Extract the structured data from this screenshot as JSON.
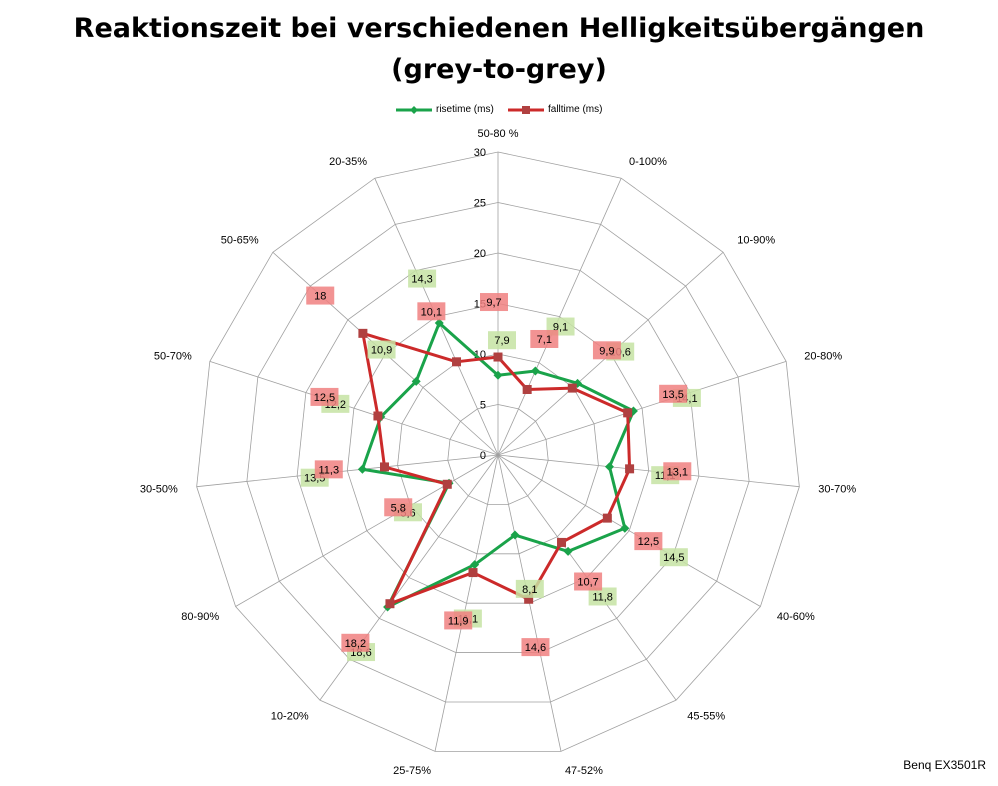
{
  "title_line1": "Reaktionszeit bei verschiedenen Helligkeitsübergängen",
  "title_line2": "(grey-to-grey)",
  "footer": "Benq EX3501R",
  "colors": {
    "rise": "#1aa34a",
    "fall": "#cc2a2a",
    "rise_label_bg": "#c6e3a3",
    "fall_label_bg": "#f08080",
    "grid": "#a0a0a0"
  },
  "chart_data": {
    "type": "radar",
    "categories": [
      "50-80 %",
      "0-100%",
      "10-90%",
      "20-80%",
      "30-70%",
      "40-60%",
      "45-55%",
      "47-52%",
      "25-75%",
      "10-20%",
      "80-90%",
      "30-50%",
      "50-70%",
      "50-65%",
      "20-35%"
    ],
    "rlim": [
      0,
      30
    ],
    "rticks": [
      "0",
      "5",
      "10",
      "15",
      "20",
      "25",
      "30"
    ],
    "series": [
      {
        "name": "risetime (ms)",
        "values": [
          7.9,
          9.1,
          10.6,
          14.1,
          11.1,
          14.5,
          11.8,
          8.1,
          11.1,
          18.6,
          5.6,
          13.5,
          12.2,
          10.9,
          14.3
        ],
        "labels": [
          "7,9",
          "9,1",
          "10,6",
          "14,1",
          "11,1",
          "14,5",
          "11,8",
          "8,1",
          "11,1",
          "18,6",
          "5,6",
          "13,5",
          "12,2",
          "10,9",
          "14,3"
        ]
      },
      {
        "name": "falltime (ms)",
        "values": [
          9.7,
          7.1,
          9.9,
          13.5,
          13.1,
          12.5,
          10.7,
          14.6,
          11.9,
          18.2,
          5.8,
          11.3,
          12.5,
          18.0,
          10.1
        ],
        "labels": [
          "9,7",
          "7,1",
          "9,9",
          "13,5",
          "13,1",
          "12,5",
          "10,7",
          "14,6",
          "11,9",
          "18,2",
          "5,8",
          "11,3",
          "12,5",
          "18",
          "10,1"
        ]
      }
    ],
    "grid": true,
    "legend": "top"
  }
}
